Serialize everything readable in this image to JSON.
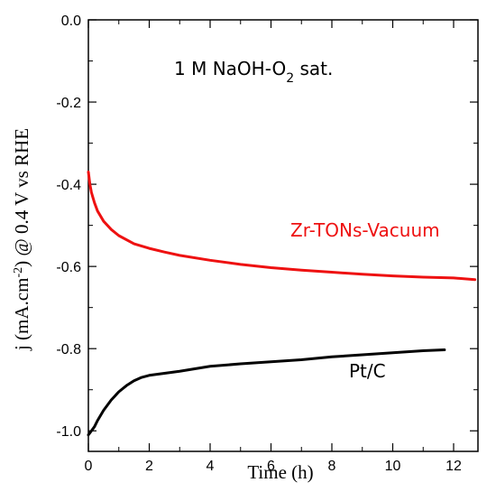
{
  "chart_data": {
    "type": "line",
    "title": "",
    "annotation_main": "1 M NaOH-O",
    "annotation_sub": "2",
    "annotation_tail": " sat.",
    "xlabel": "Time (h)",
    "ylabel_parts": [
      "j (mA.cm",
      "-2",
      ") @ 0.4 V vs RHE"
    ],
    "xlim": [
      0,
      12.8
    ],
    "ylim": [
      -1.05,
      0.0
    ],
    "xticks": [
      0,
      2,
      4,
      6,
      8,
      10,
      12
    ],
    "xtick_labels": [
      "0",
      "2",
      "4",
      "6",
      "8",
      "10",
      "12"
    ],
    "yticks": [
      0.0,
      -0.2,
      -0.4,
      -0.6,
      -0.8,
      -1.0
    ],
    "ytick_labels": [
      "0.0",
      "-0.2",
      "-0.4",
      "-0.6",
      "-0.8",
      "-1.0"
    ],
    "grid": false,
    "series": [
      {
        "name": "Zr-TONs-Vacuum",
        "color": "#ee1111",
        "x": [
          0,
          0.05,
          0.1,
          0.2,
          0.3,
          0.5,
          0.75,
          1.0,
          1.5,
          2.0,
          2.5,
          3.0,
          4.0,
          5.0,
          6.0,
          7.0,
          8.0,
          9.0,
          10.0,
          11.0,
          12.0,
          12.7
        ],
        "y": [
          -0.37,
          -0.4,
          -0.42,
          -0.445,
          -0.465,
          -0.49,
          -0.51,
          -0.525,
          -0.545,
          -0.556,
          -0.565,
          -0.573,
          -0.585,
          -0.595,
          -0.603,
          -0.609,
          -0.614,
          -0.619,
          -0.623,
          -0.626,
          -0.628,
          -0.632
        ]
      },
      {
        "name": "Pt/C",
        "color": "#000000",
        "x": [
          0,
          0.1,
          0.2,
          0.3,
          0.5,
          0.75,
          1.0,
          1.25,
          1.5,
          1.75,
          2.0,
          2.5,
          3.0,
          4.0,
          5.0,
          6.0,
          7.0,
          8.0,
          9.0,
          10.0,
          11.0,
          11.7
        ],
        "y": [
          -1.01,
          -1.0,
          -0.99,
          -0.975,
          -0.95,
          -0.925,
          -0.905,
          -0.89,
          -0.878,
          -0.87,
          -0.865,
          -0.86,
          -0.855,
          -0.843,
          -0.837,
          -0.832,
          -0.827,
          -0.82,
          -0.815,
          -0.81,
          -0.805,
          -0.803
        ]
      }
    ]
  }
}
